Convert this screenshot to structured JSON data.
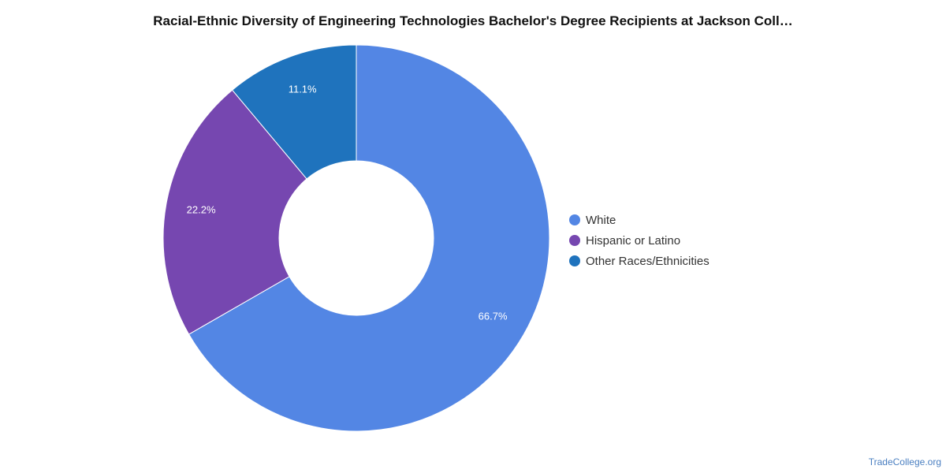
{
  "chart_data": {
    "type": "pie",
    "style": "donut",
    "title": "Racial-Ethnic Diversity of Engineering Technologies Bachelor's Degree Recipients at Jackson Coll…",
    "slices": [
      {
        "label": "White",
        "value": 66.7,
        "value_label": "66.7%",
        "color": "#5386E4"
      },
      {
        "label": "Hispanic or Latino",
        "value": 22.2,
        "value_label": "22.2%",
        "color": "#7647B0"
      },
      {
        "label": "Other Races/Ethnicities",
        "value": 11.1,
        "value_label": "11.1%",
        "color": "#1F73BD"
      }
    ],
    "legend_position": "right"
  },
  "source": "TradeCollege.org"
}
